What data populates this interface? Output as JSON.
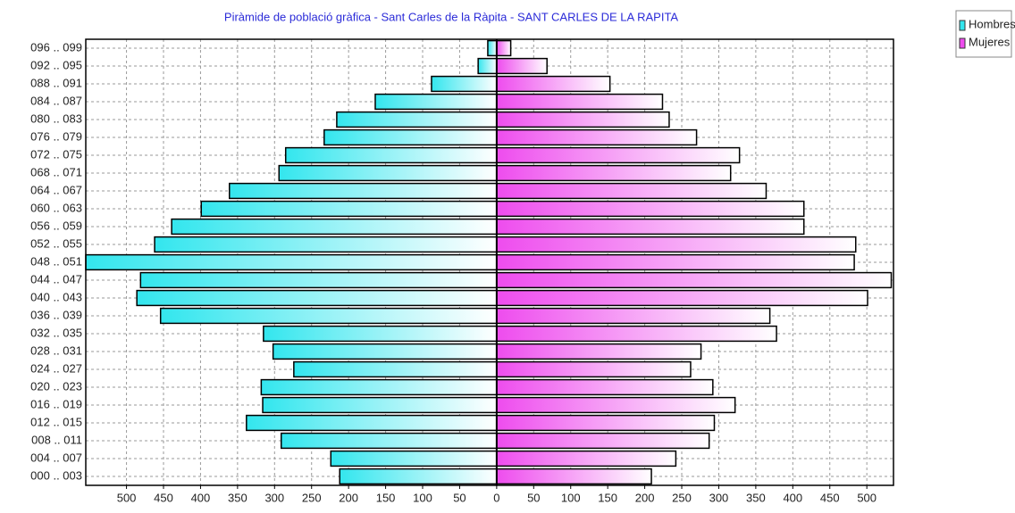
{
  "chart_data": {
    "type": "pyramid",
    "title": "Piràmide de població gràfica - Sant Carles de la Ràpita - SANT CARLES DE LA RAPITA",
    "categories": [
      "000 .. 003",
      "004 .. 007",
      "008 .. 011",
      "012 .. 015",
      "016 .. 019",
      "020 .. 023",
      "024 .. 027",
      "028 .. 031",
      "032 .. 035",
      "036 .. 039",
      "040 .. 043",
      "044 .. 047",
      "048 .. 051",
      "052 .. 055",
      "056 .. 059",
      "060 .. 063",
      "064 .. 067",
      "068 .. 071",
      "072 .. 075",
      "076 .. 079",
      "080 .. 083",
      "084 .. 087",
      "088 .. 091",
      "092 .. 095",
      "096 .. 099"
    ],
    "series": [
      {
        "name": "Hombres",
        "color": "#33e6ee",
        "values": [
          212,
          224,
          291,
          338,
          316,
          318,
          274,
          302,
          315,
          454,
          486,
          481,
          555,
          462,
          439,
          399,
          361,
          294,
          285,
          233,
          216,
          164,
          88,
          25,
          12
        ]
      },
      {
        "name": "Mujeres",
        "color": "#ee4cee",
        "values": [
          209,
          242,
          287,
          294,
          322,
          292,
          262,
          276,
          378,
          369,
          501,
          533,
          483,
          485,
          415,
          415,
          364,
          316,
          328,
          270,
          233,
          224,
          153,
          68,
          19
        ]
      }
    ],
    "xlim": [
      -555,
      536
    ],
    "xticks": [
      {
        "value": -500,
        "label": "500"
      },
      {
        "value": -450,
        "label": "450"
      },
      {
        "value": -400,
        "label": "400"
      },
      {
        "value": -350,
        "label": "350"
      },
      {
        "value": -300,
        "label": "300"
      },
      {
        "value": -250,
        "label": "250"
      },
      {
        "value": -200,
        "label": "200"
      },
      {
        "value": -150,
        "label": "150"
      },
      {
        "value": -100,
        "label": "100"
      },
      {
        "value": -50,
        "label": "50"
      },
      0,
      50,
      100,
      150,
      200,
      250,
      300,
      350,
      400,
      450,
      500
    ],
    "grid": true,
    "legend": "top-right"
  }
}
